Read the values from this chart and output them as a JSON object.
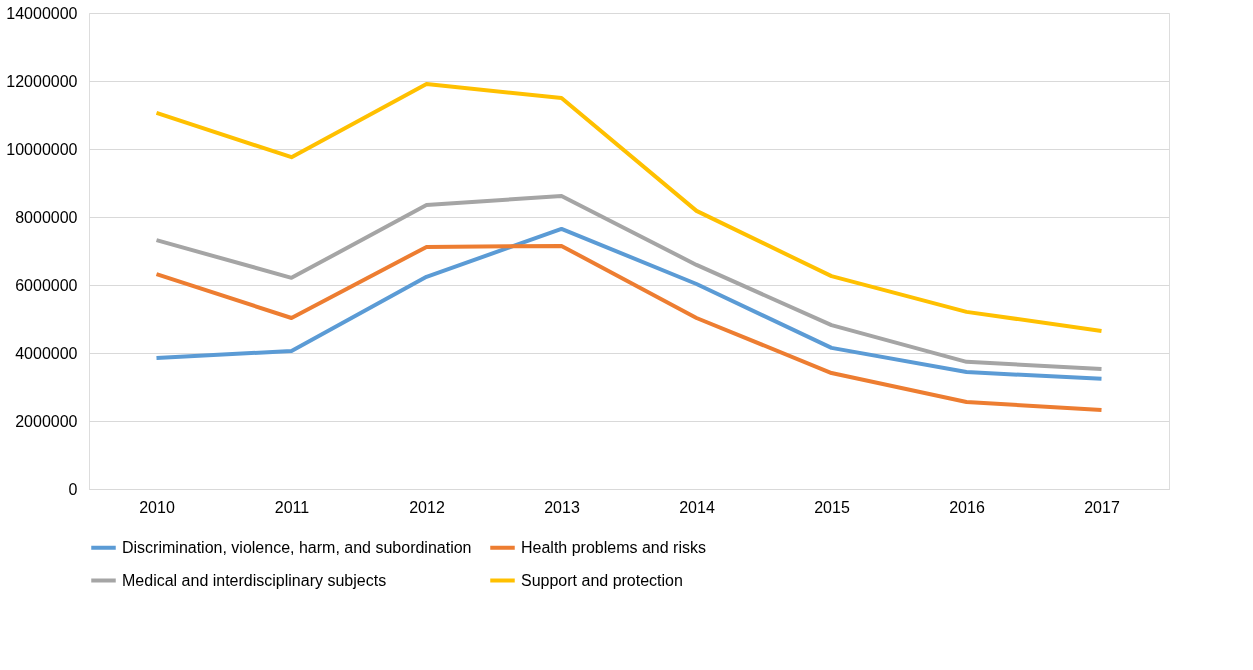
{
  "chart_data": {
    "type": "line",
    "categories": [
      "2010",
      "2011",
      "2012",
      "2013",
      "2014",
      "2015",
      "2016",
      "2017"
    ],
    "series": [
      {
        "name": "Discrimination, violence, harm, and subordination",
        "color": "#5b9bd5",
        "values": [
          3850000,
          4060000,
          6240000,
          7650000,
          6030000,
          4150000,
          3440000,
          3240000
        ]
      },
      {
        "name": "Health problems and risks",
        "color": "#ed7d31",
        "values": [
          6320000,
          5030000,
          7120000,
          7150000,
          5030000,
          3410000,
          2560000,
          2320000
        ]
      },
      {
        "name": "Medical and interdisciplinary subjects",
        "color": "#a5a5a5",
        "values": [
          7320000,
          6210000,
          8350000,
          8620000,
          6590000,
          4820000,
          3740000,
          3530000
        ]
      },
      {
        "name": "Support and protection",
        "color": "#ffc000",
        "values": [
          11060000,
          9760000,
          11910000,
          11500000,
          8180000,
          6260000,
          5210000,
          4650000
        ]
      }
    ],
    "ylim": [
      0,
      14000000
    ],
    "yticks": [
      0,
      2000000,
      4000000,
      6000000,
      8000000,
      10000000,
      12000000,
      14000000
    ],
    "grid": "y",
    "legend": "bottom",
    "marker": "none",
    "line_style": "solid"
  }
}
